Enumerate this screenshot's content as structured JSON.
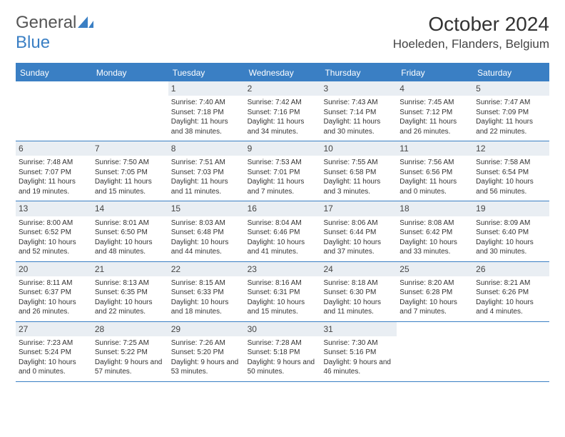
{
  "brand": {
    "name_a": "General",
    "name_b": "Blue"
  },
  "title": "October 2024",
  "location": "Hoeleden, Flanders, Belgium",
  "colors": {
    "accent": "#3a7fc4",
    "date_bg": "#e9eef3",
    "text": "#333333",
    "background": "#ffffff"
  },
  "day_headers": [
    "Sunday",
    "Monday",
    "Tuesday",
    "Wednesday",
    "Thursday",
    "Friday",
    "Saturday"
  ],
  "weeks": [
    [
      {
        "date": "",
        "sunrise": "",
        "sunset": "",
        "daylight": ""
      },
      {
        "date": "",
        "sunrise": "",
        "sunset": "",
        "daylight": ""
      },
      {
        "date": "1",
        "sunrise": "Sunrise: 7:40 AM",
        "sunset": "Sunset: 7:18 PM",
        "daylight": "Daylight: 11 hours and 38 minutes."
      },
      {
        "date": "2",
        "sunrise": "Sunrise: 7:42 AM",
        "sunset": "Sunset: 7:16 PM",
        "daylight": "Daylight: 11 hours and 34 minutes."
      },
      {
        "date": "3",
        "sunrise": "Sunrise: 7:43 AM",
        "sunset": "Sunset: 7:14 PM",
        "daylight": "Daylight: 11 hours and 30 minutes."
      },
      {
        "date": "4",
        "sunrise": "Sunrise: 7:45 AM",
        "sunset": "Sunset: 7:12 PM",
        "daylight": "Daylight: 11 hours and 26 minutes."
      },
      {
        "date": "5",
        "sunrise": "Sunrise: 7:47 AM",
        "sunset": "Sunset: 7:09 PM",
        "daylight": "Daylight: 11 hours and 22 minutes."
      }
    ],
    [
      {
        "date": "6",
        "sunrise": "Sunrise: 7:48 AM",
        "sunset": "Sunset: 7:07 PM",
        "daylight": "Daylight: 11 hours and 19 minutes."
      },
      {
        "date": "7",
        "sunrise": "Sunrise: 7:50 AM",
        "sunset": "Sunset: 7:05 PM",
        "daylight": "Daylight: 11 hours and 15 minutes."
      },
      {
        "date": "8",
        "sunrise": "Sunrise: 7:51 AM",
        "sunset": "Sunset: 7:03 PM",
        "daylight": "Daylight: 11 hours and 11 minutes."
      },
      {
        "date": "9",
        "sunrise": "Sunrise: 7:53 AM",
        "sunset": "Sunset: 7:01 PM",
        "daylight": "Daylight: 11 hours and 7 minutes."
      },
      {
        "date": "10",
        "sunrise": "Sunrise: 7:55 AM",
        "sunset": "Sunset: 6:58 PM",
        "daylight": "Daylight: 11 hours and 3 minutes."
      },
      {
        "date": "11",
        "sunrise": "Sunrise: 7:56 AM",
        "sunset": "Sunset: 6:56 PM",
        "daylight": "Daylight: 11 hours and 0 minutes."
      },
      {
        "date": "12",
        "sunrise": "Sunrise: 7:58 AM",
        "sunset": "Sunset: 6:54 PM",
        "daylight": "Daylight: 10 hours and 56 minutes."
      }
    ],
    [
      {
        "date": "13",
        "sunrise": "Sunrise: 8:00 AM",
        "sunset": "Sunset: 6:52 PM",
        "daylight": "Daylight: 10 hours and 52 minutes."
      },
      {
        "date": "14",
        "sunrise": "Sunrise: 8:01 AM",
        "sunset": "Sunset: 6:50 PM",
        "daylight": "Daylight: 10 hours and 48 minutes."
      },
      {
        "date": "15",
        "sunrise": "Sunrise: 8:03 AM",
        "sunset": "Sunset: 6:48 PM",
        "daylight": "Daylight: 10 hours and 44 minutes."
      },
      {
        "date": "16",
        "sunrise": "Sunrise: 8:04 AM",
        "sunset": "Sunset: 6:46 PM",
        "daylight": "Daylight: 10 hours and 41 minutes."
      },
      {
        "date": "17",
        "sunrise": "Sunrise: 8:06 AM",
        "sunset": "Sunset: 6:44 PM",
        "daylight": "Daylight: 10 hours and 37 minutes."
      },
      {
        "date": "18",
        "sunrise": "Sunrise: 8:08 AM",
        "sunset": "Sunset: 6:42 PM",
        "daylight": "Daylight: 10 hours and 33 minutes."
      },
      {
        "date": "19",
        "sunrise": "Sunrise: 8:09 AM",
        "sunset": "Sunset: 6:40 PM",
        "daylight": "Daylight: 10 hours and 30 minutes."
      }
    ],
    [
      {
        "date": "20",
        "sunrise": "Sunrise: 8:11 AM",
        "sunset": "Sunset: 6:37 PM",
        "daylight": "Daylight: 10 hours and 26 minutes."
      },
      {
        "date": "21",
        "sunrise": "Sunrise: 8:13 AM",
        "sunset": "Sunset: 6:35 PM",
        "daylight": "Daylight: 10 hours and 22 minutes."
      },
      {
        "date": "22",
        "sunrise": "Sunrise: 8:15 AM",
        "sunset": "Sunset: 6:33 PM",
        "daylight": "Daylight: 10 hours and 18 minutes."
      },
      {
        "date": "23",
        "sunrise": "Sunrise: 8:16 AM",
        "sunset": "Sunset: 6:31 PM",
        "daylight": "Daylight: 10 hours and 15 minutes."
      },
      {
        "date": "24",
        "sunrise": "Sunrise: 8:18 AM",
        "sunset": "Sunset: 6:30 PM",
        "daylight": "Daylight: 10 hours and 11 minutes."
      },
      {
        "date": "25",
        "sunrise": "Sunrise: 8:20 AM",
        "sunset": "Sunset: 6:28 PM",
        "daylight": "Daylight: 10 hours and 7 minutes."
      },
      {
        "date": "26",
        "sunrise": "Sunrise: 8:21 AM",
        "sunset": "Sunset: 6:26 PM",
        "daylight": "Daylight: 10 hours and 4 minutes."
      }
    ],
    [
      {
        "date": "27",
        "sunrise": "Sunrise: 7:23 AM",
        "sunset": "Sunset: 5:24 PM",
        "daylight": "Daylight: 10 hours and 0 minutes."
      },
      {
        "date": "28",
        "sunrise": "Sunrise: 7:25 AM",
        "sunset": "Sunset: 5:22 PM",
        "daylight": "Daylight: 9 hours and 57 minutes."
      },
      {
        "date": "29",
        "sunrise": "Sunrise: 7:26 AM",
        "sunset": "Sunset: 5:20 PM",
        "daylight": "Daylight: 9 hours and 53 minutes."
      },
      {
        "date": "30",
        "sunrise": "Sunrise: 7:28 AM",
        "sunset": "Sunset: 5:18 PM",
        "daylight": "Daylight: 9 hours and 50 minutes."
      },
      {
        "date": "31",
        "sunrise": "Sunrise: 7:30 AM",
        "sunset": "Sunset: 5:16 PM",
        "daylight": "Daylight: 9 hours and 46 minutes."
      },
      {
        "date": "",
        "sunrise": "",
        "sunset": "",
        "daylight": ""
      },
      {
        "date": "",
        "sunrise": "",
        "sunset": "",
        "daylight": ""
      }
    ]
  ]
}
